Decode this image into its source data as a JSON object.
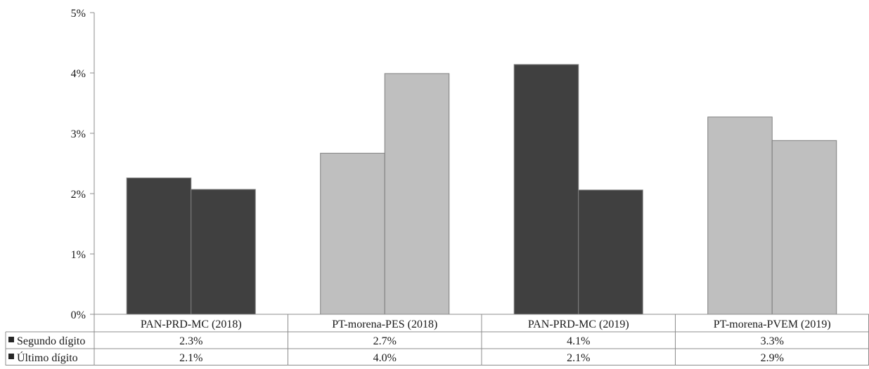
{
  "chart_data": {
    "type": "bar",
    "categories": [
      "PAN-PRD-MC (2018)",
      "PT-morena-PES (2018)",
      "PAN-PRD-MC (2019)",
      "PT-morena-PVEM (2019)"
    ],
    "series": [
      {
        "name": "Segundo dígito",
        "values": [
          2.26,
          2.67,
          4.14,
          3.27
        ],
        "labels": [
          "2.3%",
          "2.7%",
          "4.1%",
          "3.3%"
        ]
      },
      {
        "name": "Último dígito",
        "values": [
          2.07,
          3.99,
          2.06,
          2.88
        ],
        "labels": [
          "2.1%",
          "4.0%",
          "2.1%",
          "2.9%"
        ]
      }
    ],
    "bar_colors": [
      [
        "#404040",
        "#404040"
      ],
      [
        "#bfbfbf",
        "#bfbfbf"
      ],
      [
        "#404040",
        "#404040"
      ],
      [
        "#bfbfbf",
        "#bfbfbf"
      ]
    ],
    "legend_marker_color": "#262626",
    "ylim": [
      0,
      5
    ],
    "yticks": [
      "0%",
      "1%",
      "2%",
      "3%",
      "4%",
      "5%"
    ],
    "grid": false,
    "legend_position": "data-table",
    "title": "",
    "xlabel": "",
    "ylabel": ""
  }
}
